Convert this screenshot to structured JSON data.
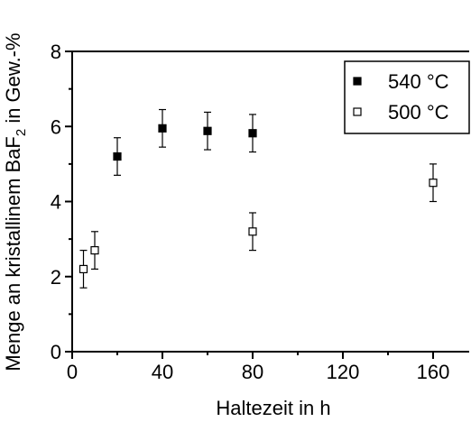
{
  "chart_data": {
    "type": "scatter",
    "title": "",
    "xlabel": "Haltezeit in h",
    "ylabel_main": "Menge an kristallinem BaF",
    "ylabel_sub": "2",
    "ylabel_tail": " in Gew.-%",
    "xlim": [
      0,
      176
    ],
    "ylim": [
      0,
      8
    ],
    "x_ticks": [
      0,
      40,
      80,
      120,
      160
    ],
    "y_ticks": [
      0,
      2,
      4,
      6,
      8
    ],
    "grid": false,
    "legend_position": "top-right",
    "series": [
      {
        "name": "540 °C",
        "marker": "filled-square",
        "color": "#000000",
        "points": [
          {
            "x": 20,
            "y": 5.2,
            "err": 0.5
          },
          {
            "x": 40,
            "y": 5.95,
            "err": 0.5
          },
          {
            "x": 60,
            "y": 5.88,
            "err": 0.5
          },
          {
            "x": 80,
            "y": 5.82,
            "err": 0.5
          }
        ]
      },
      {
        "name": "500 °C",
        "marker": "open-square",
        "color": "#000000",
        "points": [
          {
            "x": 5,
            "y": 2.2,
            "err": 0.5
          },
          {
            "x": 10,
            "y": 2.7,
            "err": 0.5
          },
          {
            "x": 80,
            "y": 3.2,
            "err": 0.5
          },
          {
            "x": 160,
            "y": 4.5,
            "err": 0.5
          }
        ]
      }
    ]
  }
}
